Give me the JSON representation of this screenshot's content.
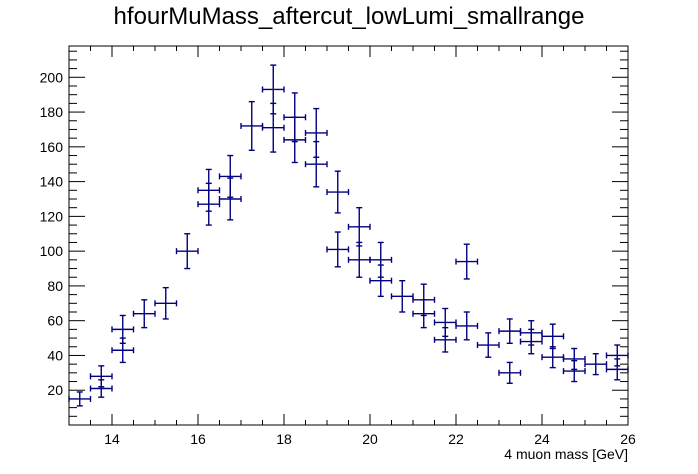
{
  "chart_data": {
    "type": "scatter",
    "title": "hfourMuMass_aftercut_lowLumi_smallrange",
    "xlabel": "4 muon mass [GeV]",
    "ylabel": "",
    "xlim": [
      13,
      26
    ],
    "ylim": [
      0,
      218
    ],
    "x_ticks": [
      14,
      16,
      18,
      20,
      22,
      24,
      26
    ],
    "y_ticks": [
      20,
      40,
      60,
      80,
      100,
      120,
      140,
      160,
      180,
      200
    ],
    "bin_half_width": 0.25,
    "marker_color": "#00007f",
    "series": [
      {
        "name": "hfourMuMass_aftercut_lowLumi_smallrange",
        "x": [
          13.25,
          13.75,
          13.75,
          14.25,
          14.25,
          14.75,
          15.25,
          15.75,
          16.25,
          16.25,
          16.75,
          16.75,
          17.25,
          17.75,
          17.75,
          18.25,
          18.25,
          18.75,
          18.75,
          19.25,
          19.25,
          19.75,
          19.75,
          20.25,
          20.25,
          20.75,
          21.25,
          21.25,
          21.75,
          21.75,
          22.25,
          22.25,
          22.75,
          23.25,
          23.25,
          23.75,
          23.75,
          24.25,
          24.25,
          24.75,
          24.75,
          25.25,
          25.75,
          25.75
        ],
        "y": [
          15,
          21,
          28,
          43,
          55,
          64,
          70,
          100,
          127,
          135,
          130,
          143,
          172,
          193,
          171,
          177,
          164,
          168,
          150,
          134,
          101,
          114,
          95,
          95,
          83,
          74,
          72,
          64,
          49,
          59,
          57,
          94,
          46,
          54,
          30,
          53,
          48,
          51,
          39,
          38,
          31,
          35,
          40,
          32
        ],
        "yerr": [
          4,
          5,
          6,
          7,
          8,
          8,
          9,
          10,
          12,
          12,
          12,
          12,
          14,
          14,
          14,
          14,
          13,
          14,
          13,
          12,
          10,
          11,
          10,
          10,
          9,
          9,
          9,
          8,
          7,
          8,
          8,
          10,
          7,
          7,
          6,
          7,
          7,
          7,
          6,
          6,
          6,
          6,
          6,
          6
        ]
      }
    ]
  }
}
